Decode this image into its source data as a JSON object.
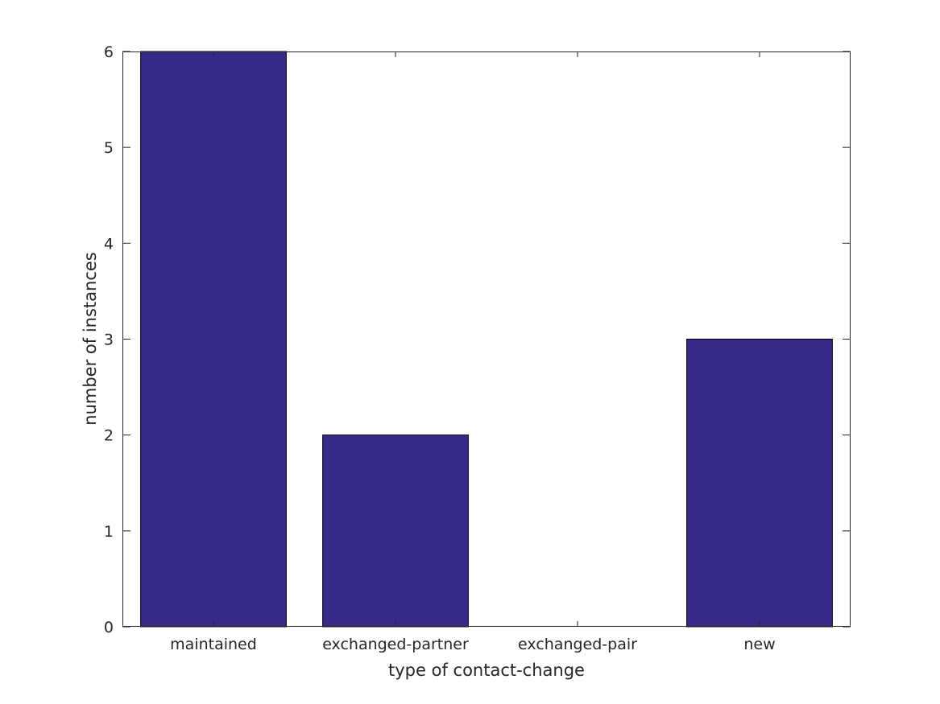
{
  "chart_data": {
    "type": "bar",
    "categories": [
      "maintained",
      "exchanged-partner",
      "exchanged-pair",
      "new"
    ],
    "values": [
      6,
      2,
      0,
      3
    ],
    "xlabel": "type of contact-change",
    "ylabel": "number of instances",
    "ylim": [
      0,
      6
    ],
    "yticks": [
      "0",
      "1",
      "2",
      "3",
      "4",
      "5",
      "6"
    ],
    "grid": false,
    "bar_color": "#352a87",
    "axis_color": "#262626"
  }
}
